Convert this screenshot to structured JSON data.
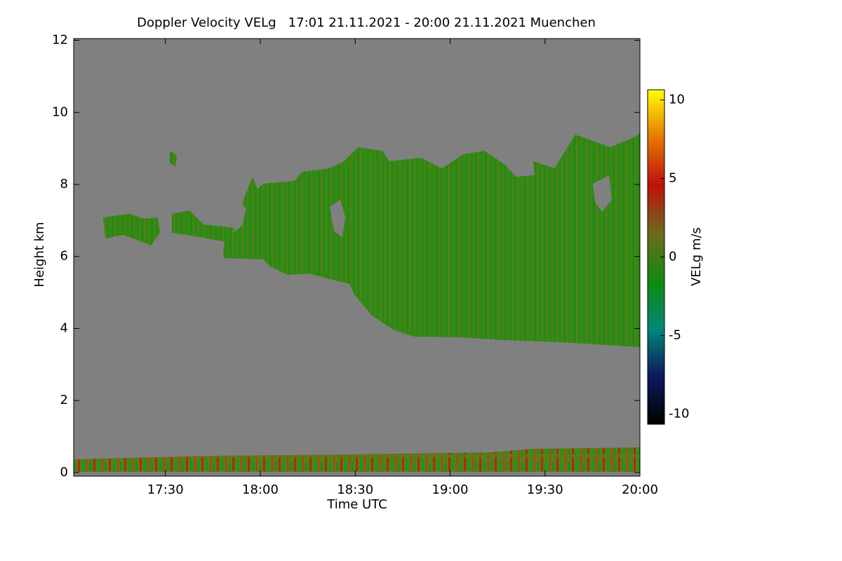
{
  "chart_data": {
    "type": "heatmap",
    "title": "Doppler Velocity VELg   17:01 21.11.2021 - 20:00 21.11.2021 Muenchen",
    "x_label": "Time UTC",
    "y_label": "Height km",
    "xlim": [
      17.0167,
      20.0
    ],
    "xticks": [
      {
        "value": 17.5,
        "label": "17:30"
      },
      {
        "value": 18.0,
        "label": "18:00"
      },
      {
        "value": 18.5,
        "label": "18:30"
      },
      {
        "value": 19.0,
        "label": "19:00"
      },
      {
        "value": 19.5,
        "label": "19:30"
      },
      {
        "value": 20.0,
        "label": "20:00"
      }
    ],
    "ylim": [
      -0.1,
      12.05
    ],
    "yticks": [
      0,
      2,
      4,
      6,
      8,
      10,
      12
    ],
    "background_color": "#808080",
    "colorbar": {
      "label": "VELg m/s",
      "lim": [
        -10.65,
        10.65
      ],
      "ticks": [
        -10,
        -5,
        0,
        5,
        10
      ],
      "colors": [
        "#000000",
        "#0c1a5c",
        "#008878",
        "#108a10",
        "#6e6a1e",
        "#c01010",
        "#e47800",
        "#ffff00"
      ]
    }
  }
}
